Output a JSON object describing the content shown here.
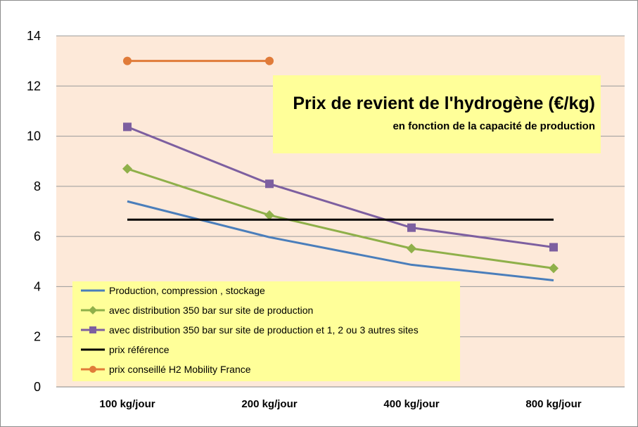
{
  "chart_data": {
    "type": "line",
    "title": "Prix de revient de l'hydrogène (€/kg)",
    "subtitle": "en fonction de la capacité de production",
    "categories": [
      "100 kg/jour",
      "200 kg/jour",
      "400 kg/jour",
      "800 kg/jour"
    ],
    "ylim": [
      0,
      14
    ],
    "yticks": [
      0,
      2,
      4,
      6,
      8,
      10,
      12,
      14
    ],
    "grid": true,
    "legend_position": "bottom-left",
    "series": [
      {
        "name": "Production, compression , stockage",
        "values": [
          7.4,
          5.97,
          4.87,
          4.25
        ],
        "color": "#4a7ebb",
        "marker": "none"
      },
      {
        "name": "avec distribution 350 bar sur site de production",
        "values": [
          8.7,
          6.85,
          5.52,
          4.73
        ],
        "color": "#8fb04a",
        "marker": "diamond"
      },
      {
        "name": "avec distribution 350 bar sur site de production et 1, 2 ou 3 autres sites",
        "values": [
          10.37,
          8.1,
          6.35,
          5.57
        ],
        "color": "#7d5fa0",
        "marker": "square"
      },
      {
        "name": "prix référence",
        "values": [
          6.67,
          6.67,
          6.67,
          6.67
        ],
        "color": "#000000",
        "marker": "none"
      },
      {
        "name": "prix conseillé H2 Mobility France",
        "values": [
          13,
          13,
          null,
          null
        ],
        "color": "#e07b39",
        "marker": "circle"
      }
    ]
  }
}
